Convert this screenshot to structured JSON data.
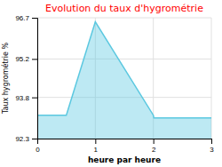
{
  "chart_data": {
    "type": "area",
    "title": "Evolution du taux d'hygrométrie",
    "xlabel": "heure par heure",
    "ylabel": "Taux hygrométrie %",
    "x": [
      0,
      0.5,
      1,
      2,
      2.01,
      3
    ],
    "values": [
      93.15,
      93.15,
      96.55,
      93.15,
      93.05,
      93.05
    ],
    "color": "#5bc8e0",
    "xlim": [
      0,
      3
    ],
    "ylim": [
      92.3,
      96.7
    ],
    "xticks": [
      0,
      1,
      2,
      3
    ],
    "yticks": [
      92.3,
      93.8,
      95.2,
      96.7
    ],
    "grid": true
  }
}
